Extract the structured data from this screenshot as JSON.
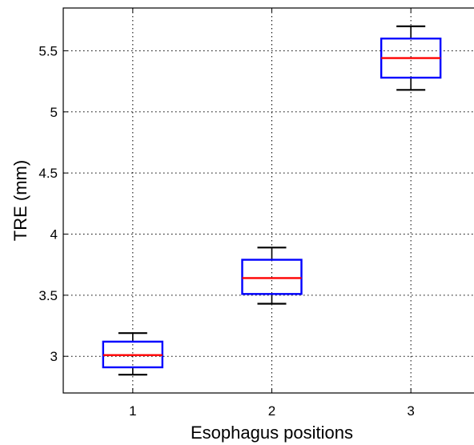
{
  "chart_data": {
    "type": "box",
    "title": "",
    "xlabel": "Esophagus positions",
    "ylabel": "TRE (mm)",
    "categories": [
      "1",
      "2",
      "3"
    ],
    "ylim": [
      2.7,
      5.85
    ],
    "yticks": [
      3,
      3.5,
      4,
      4.5,
      5,
      5.5
    ],
    "ytick_labels": [
      "3",
      "3.5",
      "4",
      "4.5",
      "5",
      "5.5"
    ],
    "grid": true,
    "boxes": [
      {
        "category": "1",
        "whisker_low": 2.85,
        "q1": 2.91,
        "median": 3.01,
        "q3": 3.12,
        "whisker_high": 3.19
      },
      {
        "category": "2",
        "whisker_low": 3.43,
        "q1": 3.51,
        "median": 3.64,
        "q3": 3.79,
        "whisker_high": 3.89
      },
      {
        "category": "3",
        "whisker_low": 5.18,
        "q1": 5.28,
        "median": 5.44,
        "q3": 5.6,
        "whisker_high": 5.7
      }
    ],
    "colors": {
      "box": "#0000ff",
      "median": "#ff0000",
      "whisker": "#000000",
      "grid": "#000000"
    }
  }
}
